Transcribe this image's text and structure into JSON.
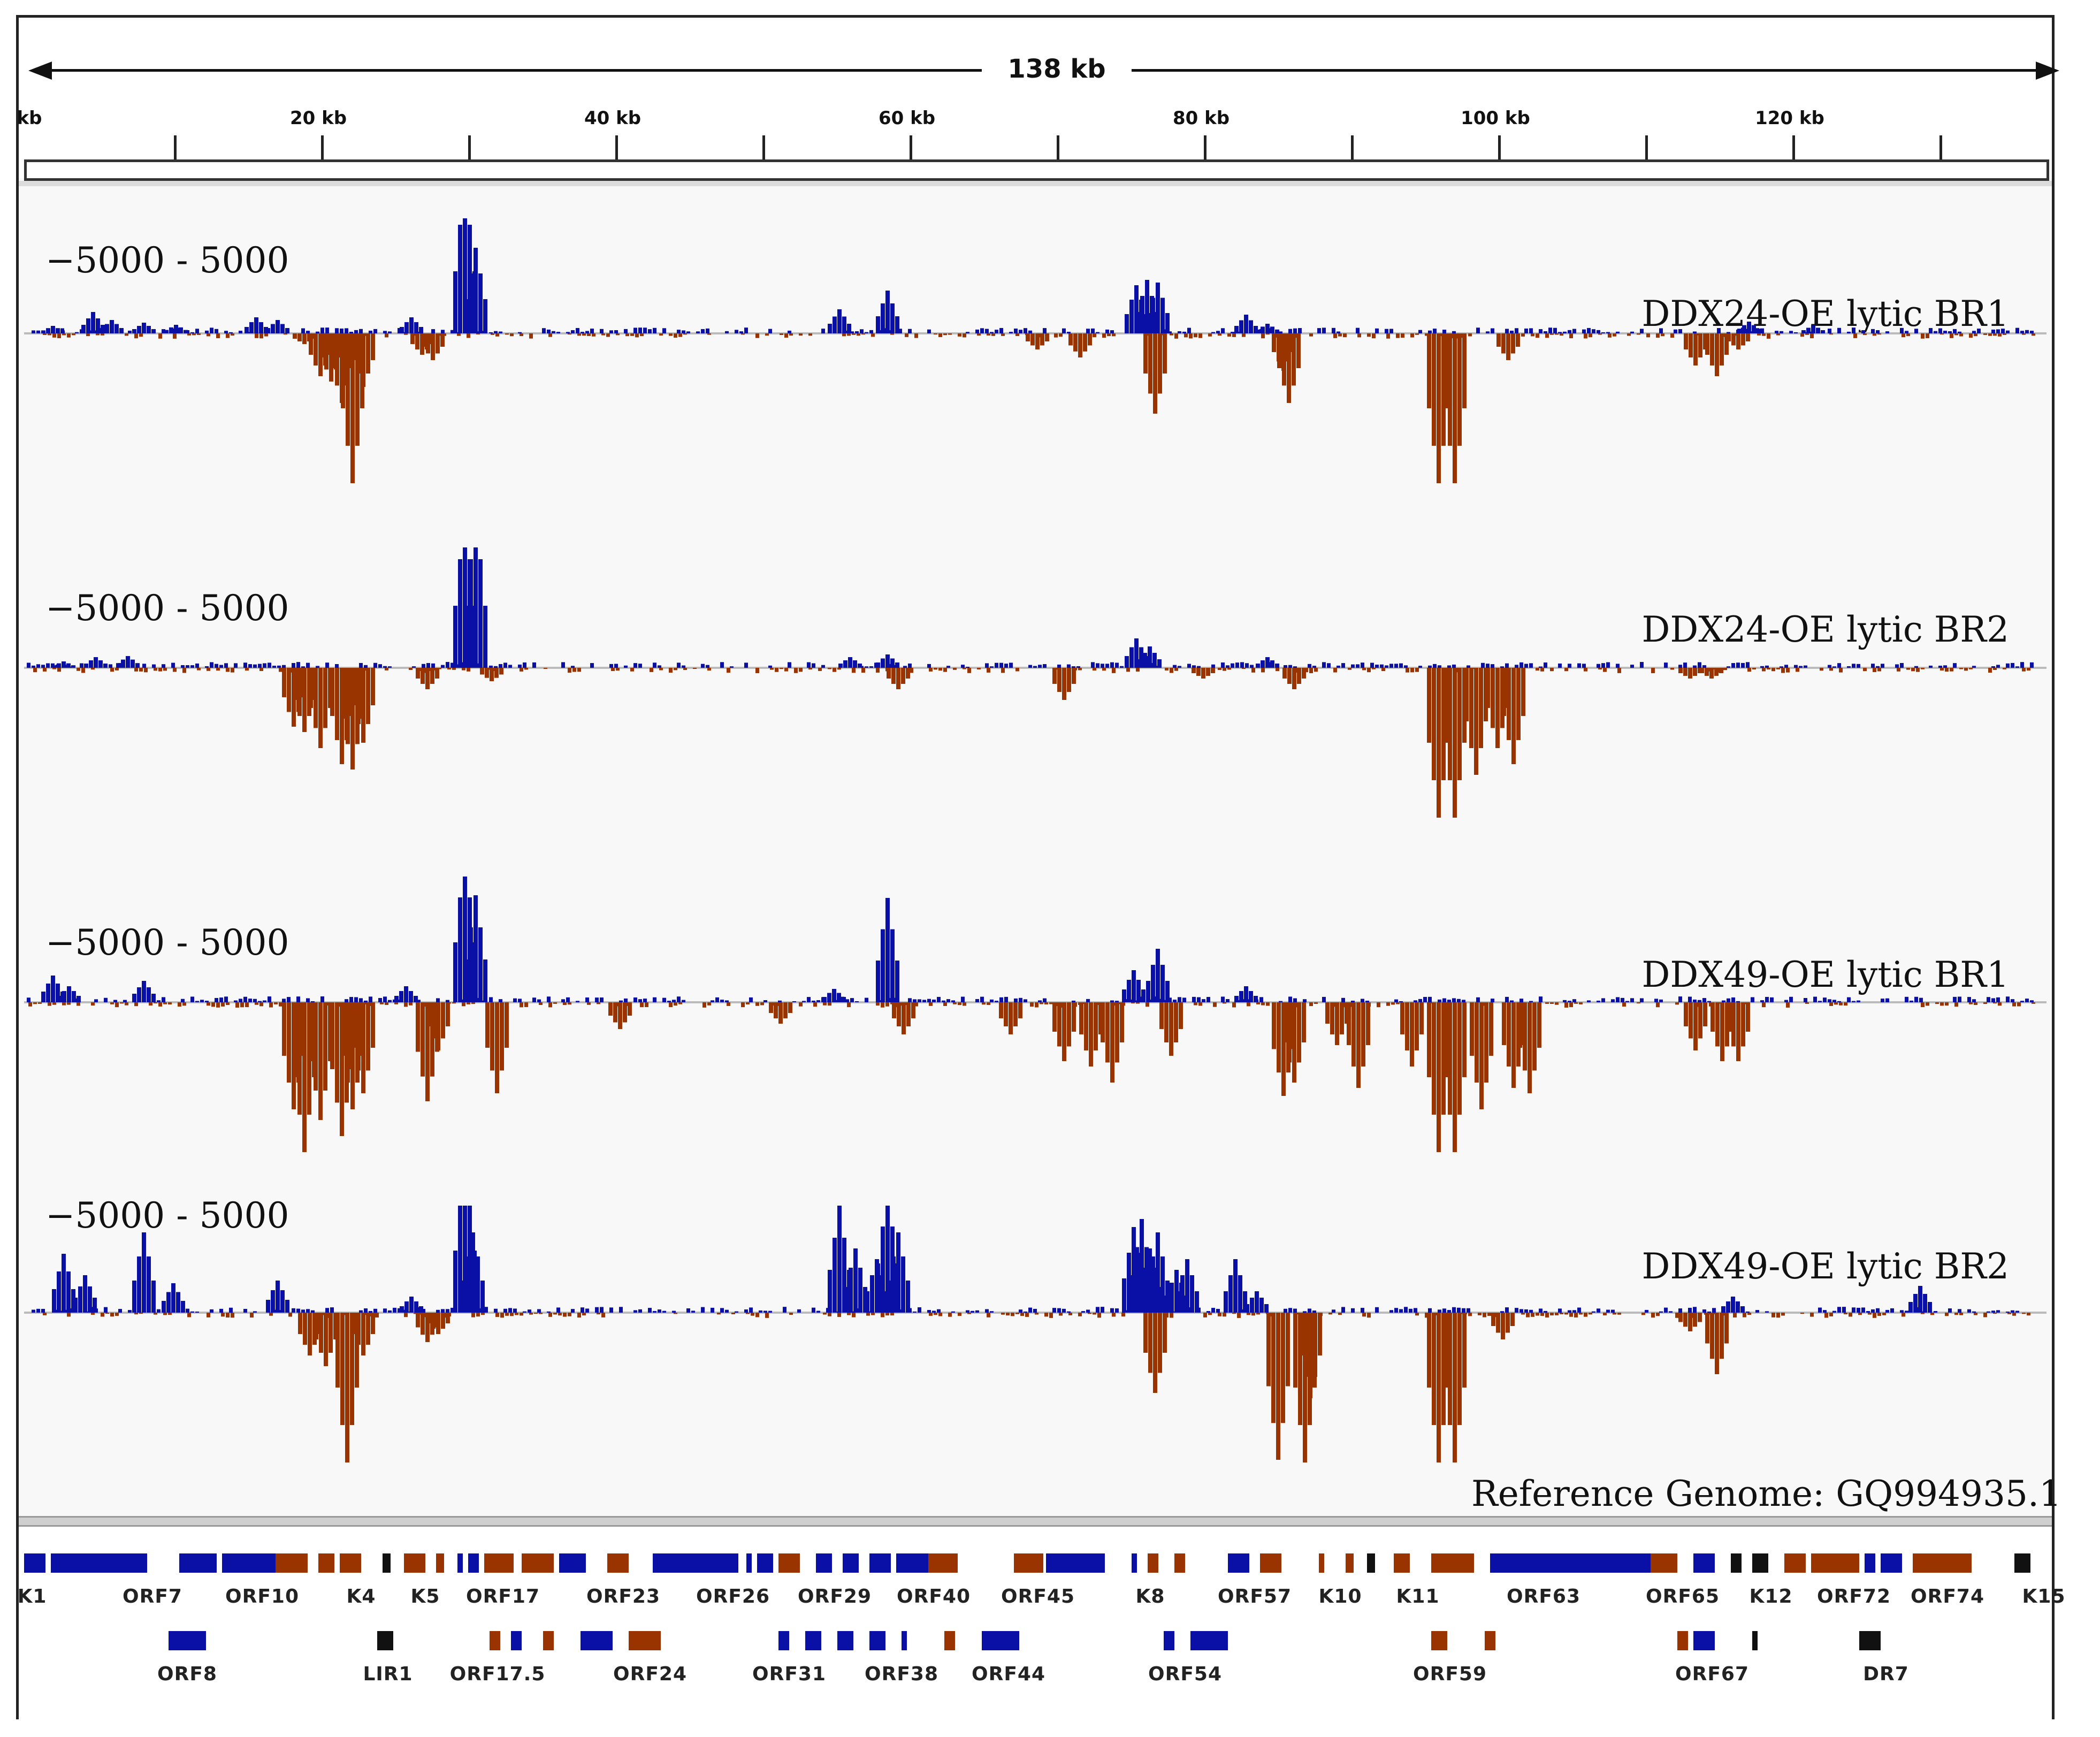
{
  "ruler": {
    "span_label": "138 kb",
    "tick_labels": [
      "kb",
      "20 kb",
      "40 kb",
      "60 kb",
      "80 kb",
      "100 kb",
      "120 kb"
    ]
  },
  "tracks": [
    {
      "name": "DDX24-OE lytic BR1",
      "range": "−5000 - 5000"
    },
    {
      "name": "DDX24-OE lytic BR2",
      "range": "−5000 - 5000"
    },
    {
      "name": "DDX49-OE lytic BR1",
      "range": "−5000 - 5000"
    },
    {
      "name": "DDX49-OE lytic BR2",
      "range": "−5000 - 5000"
    }
  ],
  "reference_label": "Reference Genome: GQ994935.1",
  "colors": {
    "plus": "#0a10a6",
    "minus": "#993300",
    "feature": "#111111"
  },
  "gene_labels_row1": [
    "K1",
    "ORF7",
    "ORF10",
    "K4",
    "K5",
    "ORF17",
    "ORF23",
    "ORF26",
    "ORF29",
    "ORF40",
    "ORF45",
    "K8",
    "ORF57",
    "K10",
    "K11",
    "ORF63",
    "ORF65",
    "K12",
    "ORF72",
    "ORF74",
    "K15"
  ],
  "gene_labels_row2": [
    "ORF8",
    "LIR1",
    "ORF17.5",
    "ORF24",
    "ORF31",
    "ORF38",
    "ORF44",
    "ORF54",
    "ORF59",
    "ORF67",
    "DR7"
  ]
}
